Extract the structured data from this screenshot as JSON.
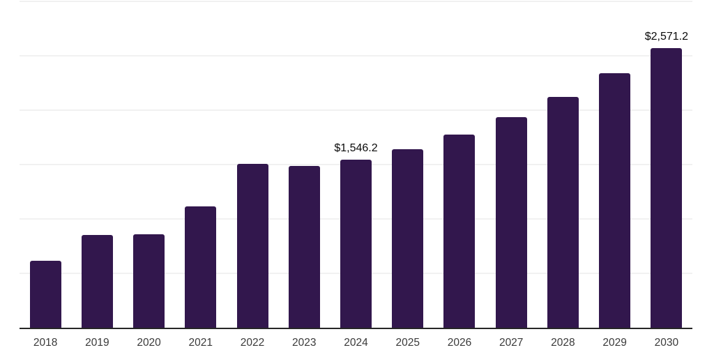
{
  "chart_data": {
    "type": "bar",
    "title": "",
    "xlabel": "",
    "ylabel": "",
    "categories": [
      2018,
      2019,
      2020,
      2021,
      2022,
      2023,
      2024,
      2025,
      2026,
      2027,
      2028,
      2029,
      2030
    ],
    "values": [
      615,
      855,
      860,
      1118,
      1508,
      1488,
      1546.2,
      1643,
      1778,
      1938,
      2124,
      2343,
      2571.2
    ],
    "data_labels": {
      "2024": "$1,546.2",
      "2030": "$2,571.2"
    },
    "ylim": [
      0,
      3000
    ],
    "grid_step": 500,
    "grid": true,
    "legend": false,
    "y_tick_labels_visible": false,
    "colors": {
      "bar": "#32174d",
      "grid": "#f1f1f1",
      "axis": "#262626",
      "tick_text": "#3a3a3a",
      "data_label_text": "#0a0a0a",
      "background": "#ffffff"
    }
  }
}
